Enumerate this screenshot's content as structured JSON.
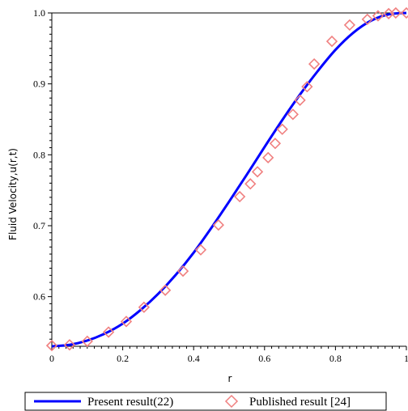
{
  "chart_data": {
    "type": "line",
    "xlabel": "r",
    "ylabel": "Fluid Velocity,u(r,t)",
    "xlim": [
      0,
      1
    ],
    "ylim": [
      0.53,
      1.0
    ],
    "xticks": [
      0,
      0.2,
      0.4,
      0.6,
      0.8,
      1
    ],
    "xtick_labels": [
      "0",
      "0.2",
      "0.4",
      "0.6",
      "0.8",
      "1"
    ],
    "yticks": [
      0.6,
      0.7,
      0.8,
      0.9,
      1.0
    ],
    "ytick_labels": [
      "0.6",
      "0.7",
      "0.8",
      "0.9",
      "1.0"
    ],
    "grid": false,
    "legend_position": "bottom",
    "colors": {
      "line": "#0000ff",
      "markers": "#f08080"
    },
    "series": [
      {
        "name": "Present result(22)",
        "style": "line",
        "x": [
          0,
          0.05,
          0.1,
          0.15,
          0.2,
          0.25,
          0.3,
          0.35,
          0.4,
          0.45,
          0.5,
          0.55,
          0.6,
          0.65,
          0.7,
          0.75,
          0.8,
          0.85,
          0.9,
          0.95,
          1.0
        ],
        "values": [
          0.53,
          0.532,
          0.538,
          0.548,
          0.562,
          0.581,
          0.604,
          0.631,
          0.662,
          0.697,
          0.734,
          0.772,
          0.811,
          0.849,
          0.885,
          0.918,
          0.948,
          0.972,
          0.989,
          0.998,
          1.0
        ]
      },
      {
        "name": "Published result [24]",
        "style": "markers",
        "marker": "diamond",
        "x": [
          0,
          0.05,
          0.1,
          0.16,
          0.21,
          0.26,
          0.32,
          0.37,
          0.42,
          0.47,
          0.53,
          0.56,
          0.58,
          0.61,
          0.63,
          0.65,
          0.68,
          0.7,
          0.72,
          0.74,
          0.79,
          0.84,
          0.89,
          0.92,
          0.95,
          0.97,
          1.0
        ],
        "values": [
          0.531,
          0.532,
          0.537,
          0.55,
          0.565,
          0.585,
          0.609,
          0.636,
          0.666,
          0.701,
          0.741,
          0.759,
          0.776,
          0.796,
          0.816,
          0.836,
          0.857,
          0.877,
          0.896,
          0.928,
          0.96,
          0.983,
          0.991,
          0.996,
          0.999,
          1.0,
          1.0
        ]
      }
    ]
  }
}
